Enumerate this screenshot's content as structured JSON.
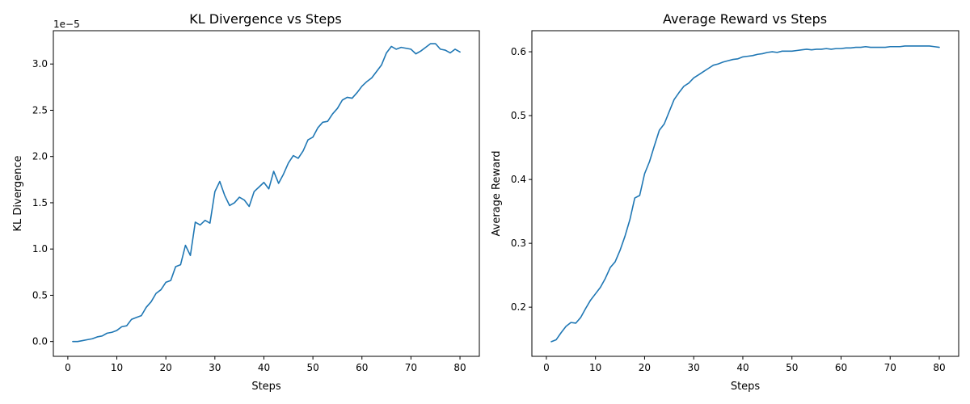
{
  "chart_data": [
    {
      "type": "line",
      "title": "KL Divergence vs Steps",
      "xlabel": "Steps",
      "ylabel": "KL Divergence",
      "offset_label": "1e−5",
      "color": "#1f77b4",
      "grid": false,
      "xlim": [
        -2.95,
        83.95
      ],
      "ylim": [
        -0.16,
        3.36
      ],
      "xticks": [
        0,
        10,
        20,
        30,
        40,
        50,
        60,
        70,
        80
      ],
      "yticks": [
        0.0,
        0.5,
        1.0,
        1.5,
        2.0,
        2.5,
        3.0
      ],
      "yticklabels": [
        "0.0",
        "0.5",
        "1.0",
        "1.5",
        "2.0",
        "2.5",
        "3.0"
      ],
      "series": [
        {
          "x": [
            1,
            2,
            3,
            4,
            5,
            6,
            7,
            8,
            9,
            10,
            11,
            12,
            13,
            14,
            15,
            16,
            17,
            18,
            19,
            20,
            21,
            22,
            23,
            24,
            25,
            26,
            27,
            28,
            29,
            30,
            31,
            32,
            33,
            34,
            35,
            36,
            37,
            38,
            39,
            40,
            41,
            42,
            43,
            44,
            45,
            46,
            47,
            48,
            49,
            50,
            51,
            52,
            53,
            54,
            55,
            56,
            57,
            58,
            59,
            60,
            61,
            62,
            63,
            64,
            65,
            66,
            67,
            68,
            69,
            70,
            71,
            72,
            73,
            74,
            75,
            76,
            77,
            78,
            79,
            80
          ],
          "y": [
            0.0,
            0.0,
            0.01,
            0.02,
            0.03,
            0.05,
            0.06,
            0.09,
            0.1,
            0.12,
            0.16,
            0.17,
            0.24,
            0.26,
            0.28,
            0.37,
            0.43,
            0.52,
            0.56,
            0.64,
            0.66,
            0.81,
            0.83,
            1.04,
            0.93,
            1.29,
            1.26,
            1.31,
            1.28,
            1.62,
            1.73,
            1.58,
            1.47,
            1.5,
            1.56,
            1.53,
            1.46,
            1.62,
            1.67,
            1.72,
            1.65,
            1.84,
            1.71,
            1.81,
            1.93,
            2.01,
            1.98,
            2.06,
            2.18,
            2.21,
            2.31,
            2.37,
            2.38,
            2.46,
            2.52,
            2.61,
            2.64,
            2.63,
            2.69,
            2.76,
            2.81,
            2.85,
            2.92,
            2.99,
            3.12,
            3.19,
            3.16,
            3.18,
            3.17,
            3.16,
            3.11,
            3.14,
            3.18,
            3.22,
            3.22,
            3.16,
            3.15,
            3.12,
            3.16,
            3.13
          ]
        }
      ]
    },
    {
      "type": "line",
      "title": "Average Reward vs Steps",
      "xlabel": "Steps",
      "ylabel": "Average Reward",
      "color": "#1f77b4",
      "grid": false,
      "xlim": [
        -2.95,
        83.95
      ],
      "ylim": [
        0.123,
        0.633
      ],
      "xticks": [
        0,
        10,
        20,
        30,
        40,
        50,
        60,
        70,
        80
      ],
      "yticks": [
        0.2,
        0.3,
        0.4,
        0.5,
        0.6
      ],
      "yticklabels": [
        "0.2",
        "0.3",
        "0.4",
        "0.5",
        "0.6"
      ],
      "series": [
        {
          "x": [
            1,
            2,
            3,
            4,
            5,
            6,
            7,
            8,
            9,
            10,
            11,
            12,
            13,
            14,
            15,
            16,
            17,
            18,
            19,
            20,
            21,
            22,
            23,
            24,
            25,
            26,
            27,
            28,
            29,
            30,
            31,
            32,
            33,
            34,
            35,
            36,
            37,
            38,
            39,
            40,
            41,
            42,
            43,
            44,
            45,
            46,
            47,
            48,
            49,
            50,
            51,
            52,
            53,
            54,
            55,
            56,
            57,
            58,
            59,
            60,
            61,
            62,
            63,
            64,
            65,
            66,
            67,
            68,
            69,
            70,
            71,
            72,
            73,
            74,
            75,
            76,
            77,
            78,
            79,
            80
          ],
          "y": [
            0.146,
            0.149,
            0.16,
            0.17,
            0.176,
            0.175,
            0.184,
            0.198,
            0.211,
            0.221,
            0.231,
            0.245,
            0.262,
            0.271,
            0.289,
            0.311,
            0.337,
            0.371,
            0.375,
            0.409,
            0.428,
            0.453,
            0.477,
            0.487,
            0.506,
            0.525,
            0.536,
            0.546,
            0.551,
            0.559,
            0.564,
            0.569,
            0.574,
            0.579,
            0.581,
            0.584,
            0.586,
            0.588,
            0.589,
            0.592,
            0.593,
            0.594,
            0.596,
            0.597,
            0.599,
            0.6,
            0.599,
            0.601,
            0.601,
            0.601,
            0.602,
            0.603,
            0.604,
            0.603,
            0.604,
            0.604,
            0.605,
            0.604,
            0.605,
            0.605,
            0.606,
            0.606,
            0.607,
            0.607,
            0.608,
            0.607,
            0.607,
            0.607,
            0.607,
            0.608,
            0.608,
            0.608,
            0.609,
            0.609,
            0.609,
            0.609,
            0.609,
            0.609,
            0.608,
            0.607
          ]
        }
      ]
    }
  ]
}
